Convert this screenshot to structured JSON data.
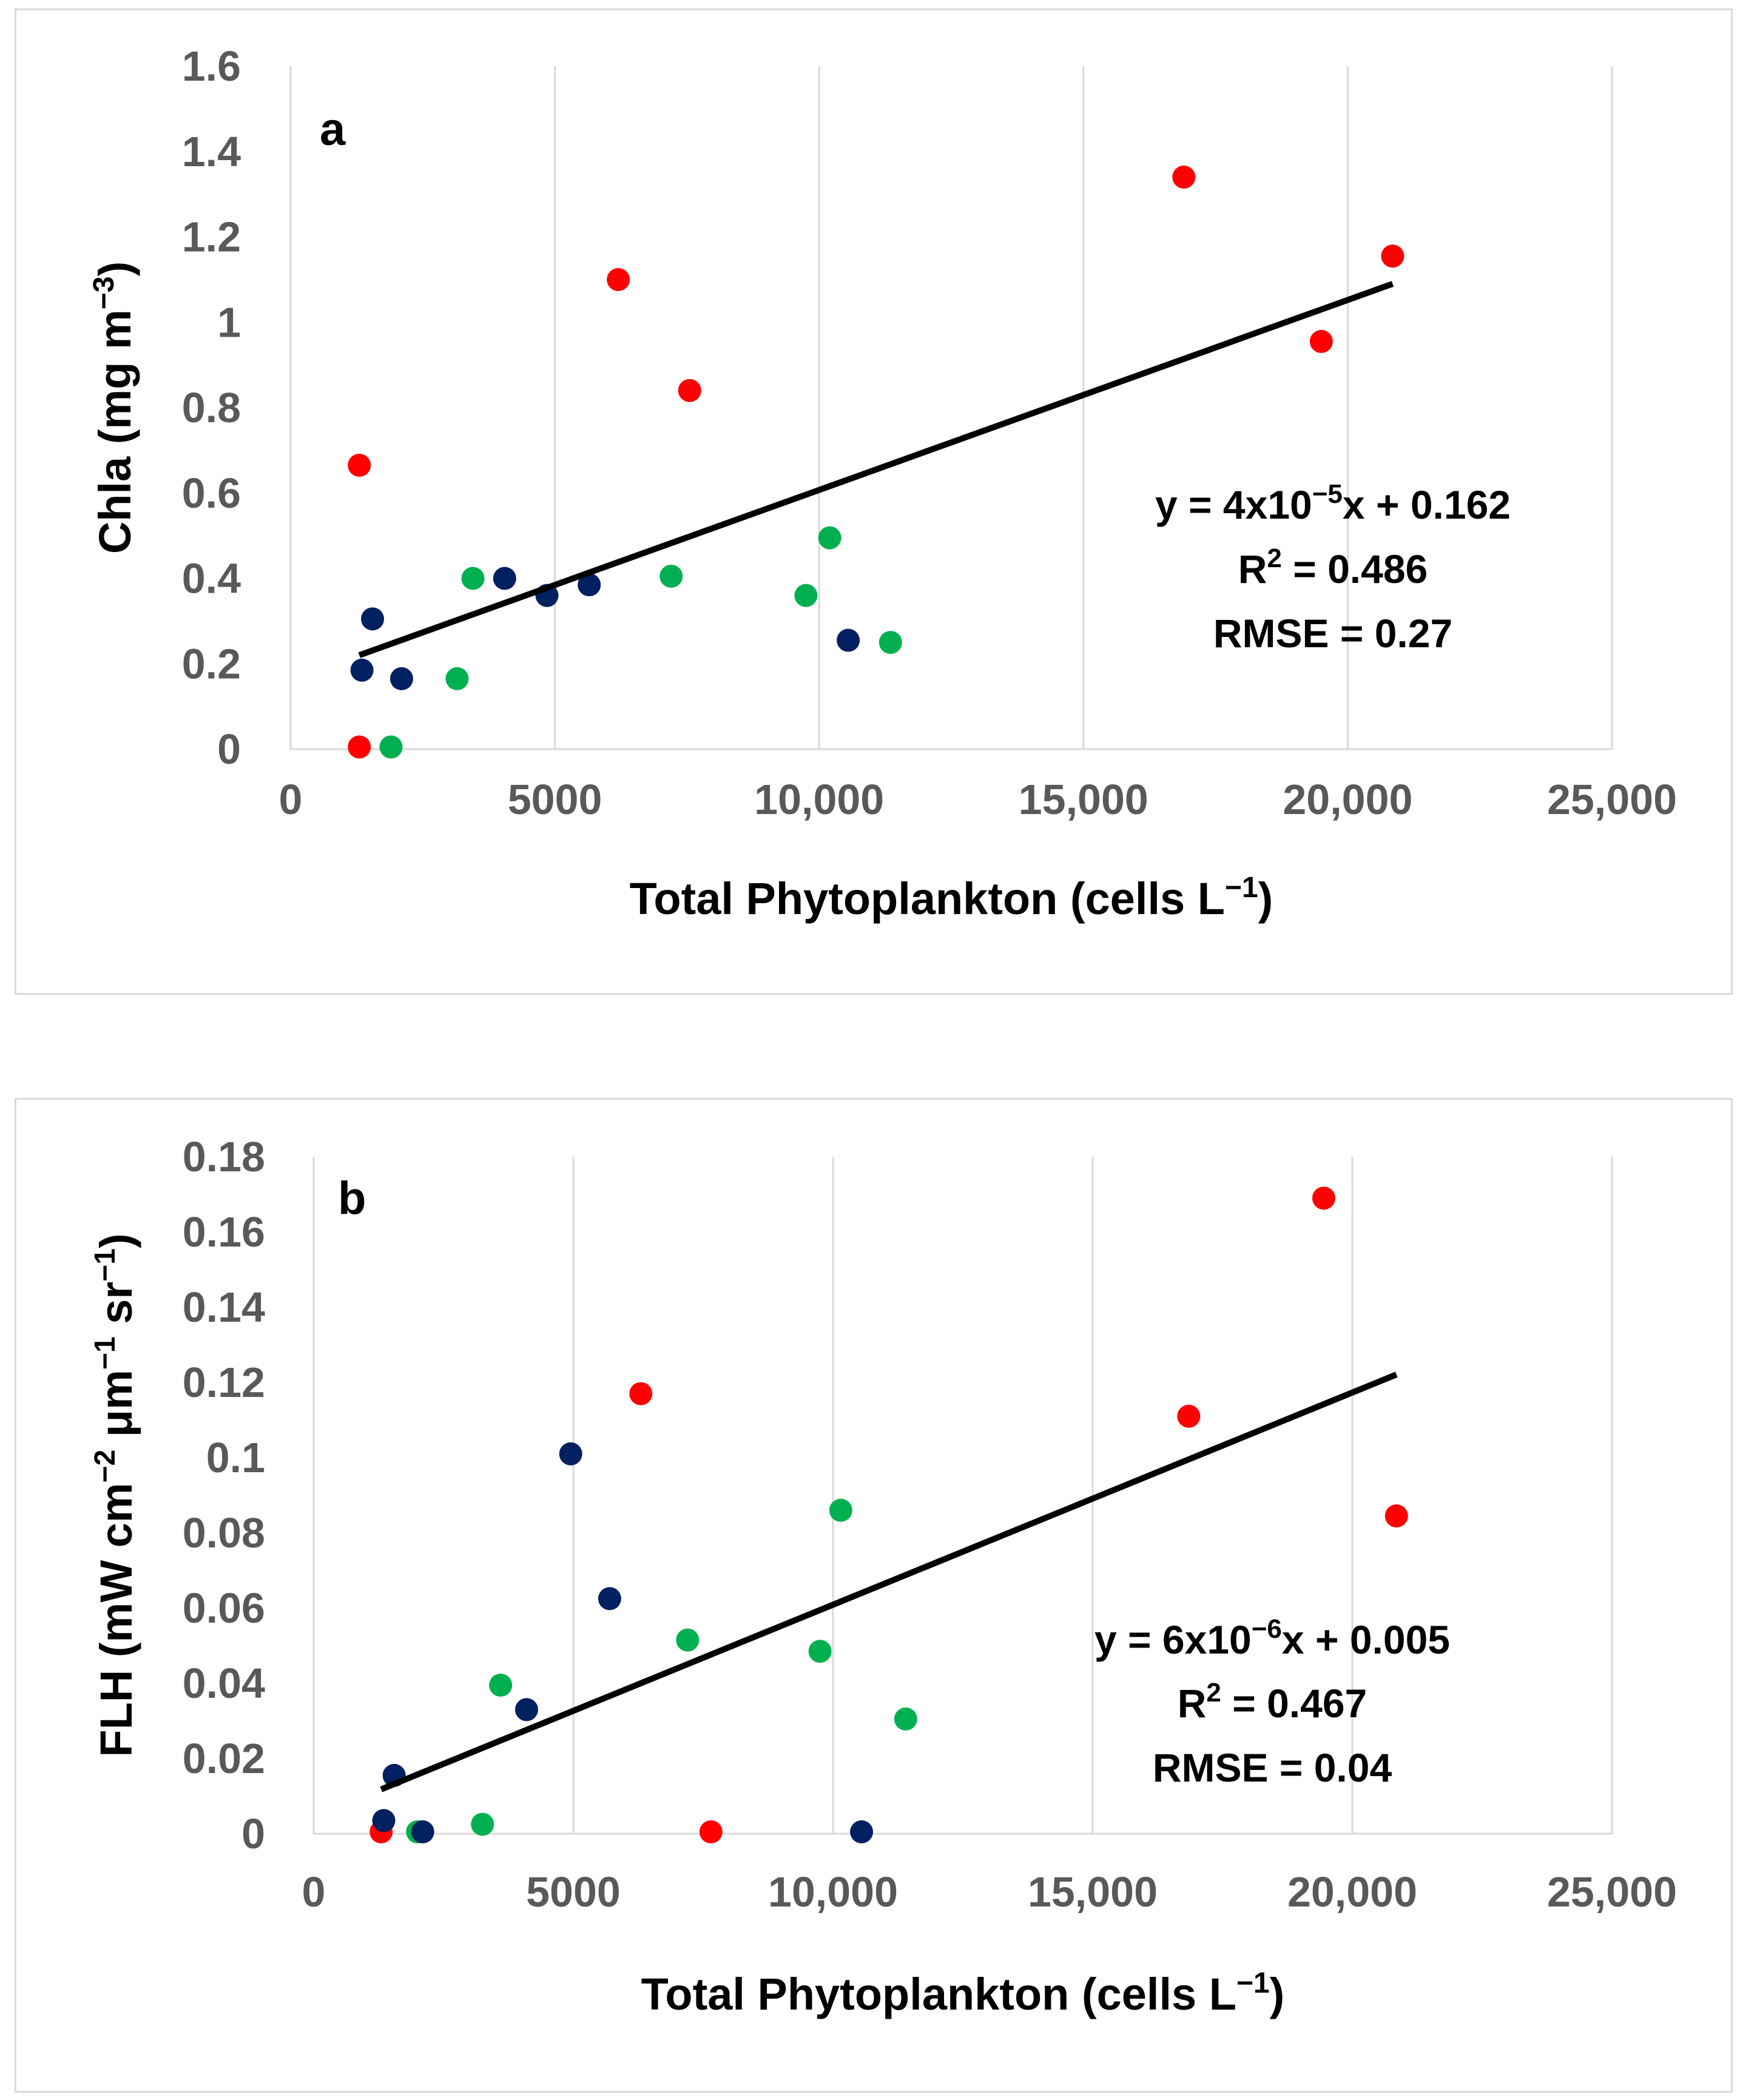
{
  "chart_data": [
    {
      "type": "scatter",
      "panel_label": "a",
      "xlabel": "Total Phytoplankton (cells L",
      "xlabel_sup": "−1",
      "xlabel_end": ")",
      "ylabel": "Chla (mg m",
      "ylabel_sup": "−3",
      "ylabel_end": ")",
      "xlim": [
        0,
        25000
      ],
      "ylim": [
        0,
        1.6
      ],
      "x_ticks": [
        0,
        5000,
        10000,
        15000,
        20000,
        25000
      ],
      "x_tick_labels": [
        "0",
        "5000",
        "10,000",
        "15,000",
        "20,000",
        "25,000"
      ],
      "y_ticks": [
        0,
        0.2,
        0.4,
        0.6,
        0.8,
        1.0,
        1.2,
        1.4,
        1.6
      ],
      "y_tick_labels": [
        "0",
        "0.2",
        "0.4",
        "0.6",
        "0.8",
        "1",
        "1.2",
        "1.4",
        "1.6"
      ],
      "grid": "vertical",
      "series": [
        {
          "name": "red",
          "color": "#ff0000",
          "points": [
            [
              1300,
              0.665
            ],
            [
              1300,
              0.005
            ],
            [
              6200,
              1.1
            ],
            [
              7550,
              0.84
            ],
            [
              16900,
              1.34
            ],
            [
              19500,
              0.955
            ],
            [
              20850,
              1.155
            ]
          ]
        },
        {
          "name": "green",
          "color": "#00b050",
          "points": [
            [
              1900,
              0.005
            ],
            [
              3150,
              0.165
            ],
            [
              3450,
              0.4
            ],
            [
              7200,
              0.405
            ],
            [
              9750,
              0.36
            ],
            [
              10200,
              0.495
            ],
            [
              11350,
              0.25
            ]
          ]
        },
        {
          "name": "navy",
          "color": "#002060",
          "points": [
            [
              1350,
              0.185
            ],
            [
              1550,
              0.305
            ],
            [
              2100,
              0.165
            ],
            [
              4050,
              0.4
            ],
            [
              4850,
              0.36
            ],
            [
              5650,
              0.385
            ],
            [
              10550,
              0.255
            ]
          ]
        }
      ],
      "trendline": {
        "x": [
          1300,
          20850
        ],
        "y": [
          0.22,
          1.09
        ]
      },
      "equation": {
        "prefix": "y = 4x10",
        "exp": "−5",
        "suffix": "x + 0.162",
        "r2_label": "R",
        "r2_sup": "2",
        "r2_value": " = 0.486",
        "rmse": "RMSE = 0.27"
      }
    },
    {
      "type": "scatter",
      "panel_label": "b",
      "xlabel": "Total Phytoplankton (cells L",
      "xlabel_sup": "−1",
      "xlabel_end": ")",
      "ylabel": "FLH (mW cm",
      "ylabel_sup": "−2",
      "ylabel_mid": " μm",
      "ylabel_sup2": "−1",
      "ylabel_mid2": " sr",
      "ylabel_sup3": "−1",
      "ylabel_end": ")",
      "xlim": [
        0,
        25000
      ],
      "ylim": [
        0,
        0.18
      ],
      "x_ticks": [
        0,
        5000,
        10000,
        15000,
        20000,
        25000
      ],
      "x_tick_labels": [
        "0",
        "5000",
        "10,000",
        "15,000",
        "20,000",
        "25,000"
      ],
      "y_ticks": [
        0,
        0.02,
        0.04,
        0.06,
        0.08,
        0.1,
        0.12,
        0.14,
        0.16,
        0.18
      ],
      "y_tick_labels": [
        "0",
        "0.02",
        "0.04",
        "0.06",
        "0.08",
        "0.1",
        "0.12",
        "0.14",
        "0.16",
        "0.18"
      ],
      "grid": "vertical",
      "series": [
        {
          "name": "red",
          "color": "#ff0000",
          "points": [
            [
              1300,
              0.0005
            ],
            [
              6300,
              0.117
            ],
            [
              7650,
              0.0005
            ],
            [
              16850,
              0.111
            ],
            [
              19450,
              0.169
            ],
            [
              20850,
              0.0845
            ]
          ]
        },
        {
          "name": "green",
          "color": "#00b050",
          "points": [
            [
              2000,
              0.0005
            ],
            [
              3250,
              0.0025
            ],
            [
              3600,
              0.0395
            ],
            [
              7200,
              0.0515
            ],
            [
              9750,
              0.0485
            ],
            [
              10150,
              0.086
            ],
            [
              11400,
              0.0305
            ]
          ]
        },
        {
          "name": "navy",
          "color": "#002060",
          "points": [
            [
              1350,
              0.0035
            ],
            [
              1550,
              0.0155
            ],
            [
              2100,
              0.0005
            ],
            [
              4100,
              0.033
            ],
            [
              4950,
              0.101
            ],
            [
              5700,
              0.0625
            ],
            [
              10550,
              0.0005
            ]
          ]
        }
      ],
      "trendline": {
        "x": [
          1300,
          20850
        ],
        "y": [
          0.0118,
          0.1221
        ]
      },
      "equation": {
        "prefix": "y = 6x10",
        "exp": "−6",
        "suffix": "x + 0.005",
        "r2_label": "R",
        "r2_sup": "2",
        "r2_value": " = 0.467",
        "rmse": "RMSE = 0.04"
      }
    }
  ]
}
